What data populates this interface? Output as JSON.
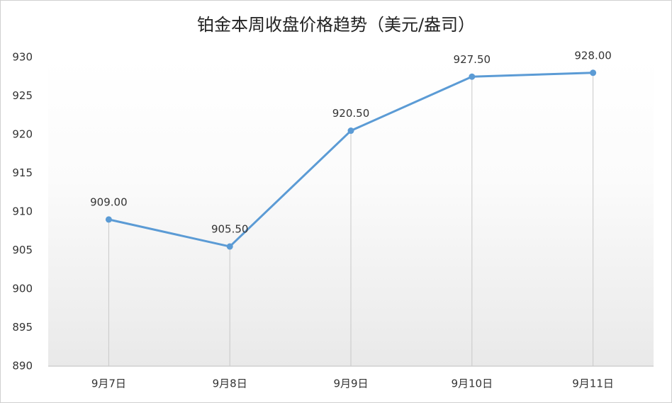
{
  "chart_data": {
    "type": "line",
    "title": "铂金本周收盘价格趋势（美元/盎司）",
    "categories": [
      "9月7日",
      "9月8日",
      "9月9日",
      "9月10日",
      "9月11日"
    ],
    "series": [
      {
        "name": "收盘价",
        "color": "#5b9bd5",
        "values": [
          909,
          905.5,
          920.5,
          927.5,
          928
        ],
        "value_labels": [
          "909.00",
          "905.50",
          "920.50",
          "927.50",
          "928.00"
        ]
      }
    ],
    "ylim": [
      890,
      930
    ],
    "yticks": [
      890,
      895,
      900,
      905,
      910,
      915,
      920,
      925,
      930
    ],
    "drop_lines": true,
    "grid": false
  }
}
